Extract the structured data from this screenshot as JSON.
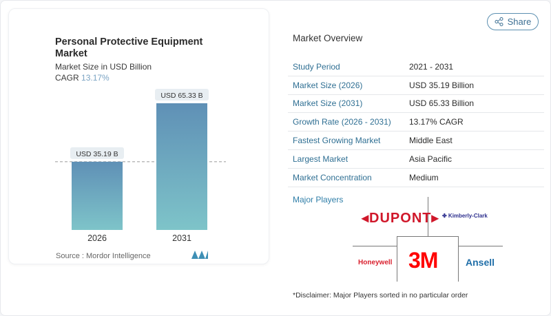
{
  "header": {
    "share_label": "Share"
  },
  "card": {
    "title": "Personal Protective Equipment Market",
    "subtitle": "Market Size in USD Billion",
    "cagr_label": "CAGR",
    "cagr_value": "13.17%",
    "source": "Source :  Mordor Intelligence"
  },
  "chart_data": {
    "type": "bar",
    "categories": [
      "2026",
      "2031"
    ],
    "values": [
      35.19,
      65.33
    ],
    "data_labels": [
      "USD 35.19 B",
      "USD 65.33 B"
    ],
    "title": "Personal Protective Equipment Market",
    "ylabel": "Market Size in USD Billion",
    "ylim": [
      0,
      70
    ],
    "grid": false,
    "colors": {
      "top": "#5f90b6",
      "bottom": "#7ec4c9"
    }
  },
  "overview": {
    "title": "Market Overview",
    "rows": [
      {
        "label": "Study Period",
        "value": "2021 - 2031"
      },
      {
        "label": "Market Size (2026)",
        "value": "USD 35.19 Billion"
      },
      {
        "label": "Market Size (2031)",
        "value": "USD 65.33 Billion"
      },
      {
        "label": "Growth Rate (2026 - 2031)",
        "value": "13.17% CAGR"
      },
      {
        "label": "Fastest Growing Market",
        "value": "Middle East"
      },
      {
        "label": "Largest Market",
        "value": "Asia Pacific"
      },
      {
        "label": "Market Concentration",
        "value": "Medium"
      }
    ]
  },
  "players": {
    "title": "Major Players",
    "logos": [
      "DUPONT",
      "Kimberly-Clark",
      "Honeywell",
      "3M",
      "Ansell"
    ],
    "disclaimer": "*Disclaimer: Major Players sorted in no particular order"
  }
}
